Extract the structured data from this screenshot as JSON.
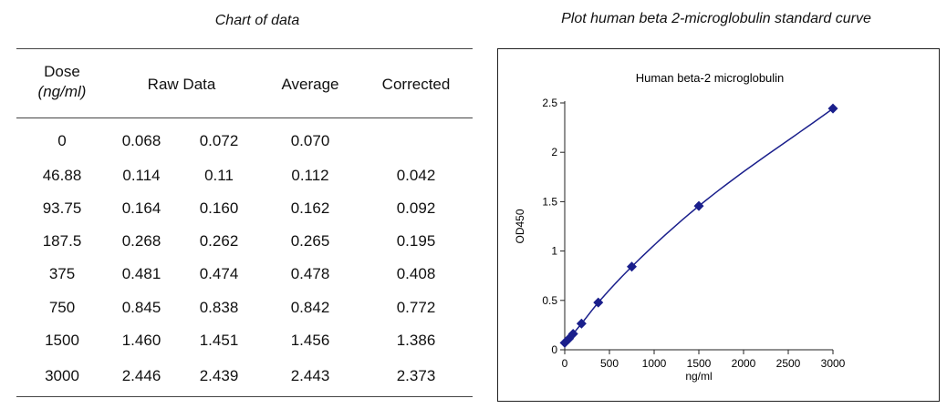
{
  "table_title": "Chart of data",
  "plot_caption": "Plot human beta 2-microglobulin standard curve",
  "table": {
    "headers": {
      "dose": "Dose",
      "dose_unit": "(ng/ml)",
      "raw": "Raw Data",
      "average": "Average",
      "corrected": "Corrected"
    },
    "rows": [
      {
        "dose": "0",
        "raw1": "0.068",
        "raw2": "0.072",
        "average": "0.070",
        "corrected": ""
      },
      {
        "dose": "46.88",
        "raw1": "0.114",
        "raw2": "0.11",
        "average": "0.112",
        "corrected": "0.042"
      },
      {
        "dose": "93.75",
        "raw1": "0.164",
        "raw2": "0.160",
        "average": "0.162",
        "corrected": "0.092"
      },
      {
        "dose": "187.5",
        "raw1": "0.268",
        "raw2": "0.262",
        "average": "0.265",
        "corrected": "0.195"
      },
      {
        "dose": "375",
        "raw1": "0.481",
        "raw2": "0.474",
        "average": "0.478",
        "corrected": "0.408"
      },
      {
        "dose": "750",
        "raw1": "0.845",
        "raw2": "0.838",
        "average": "0.842",
        "corrected": "0.772"
      },
      {
        "dose": "1500",
        "raw1": "1.460",
        "raw2": "1.451",
        "average": "1.456",
        "corrected": "1.386"
      },
      {
        "dose": "3000",
        "raw1": "2.446",
        "raw2": "2.439",
        "average": "2.443",
        "corrected": "2.373"
      }
    ]
  },
  "chart_data": {
    "type": "scatter",
    "title": "Human beta-2 microglobulin",
    "xlabel": "ng/ml",
    "ylabel": "OD450",
    "xlim": [
      0,
      3000
    ],
    "ylim": [
      0,
      2.5
    ],
    "xticks": [
      "0",
      "500",
      "1000",
      "1500",
      "2000",
      "2500",
      "3000"
    ],
    "xtick_values": [
      0,
      500,
      1000,
      1500,
      2000,
      2500,
      3000
    ],
    "yticks": [
      "0",
      "0.5",
      "1",
      "1.5",
      "2",
      "2.5"
    ],
    "ytick_values": [
      0,
      0.5,
      1,
      1.5,
      2,
      2.5
    ],
    "grid": false,
    "legend": "none",
    "fit_line": true,
    "color": "#1a1f8c",
    "x": [
      0,
      46.88,
      93.75,
      187.5,
      375,
      750,
      1500,
      3000
    ],
    "y": [
      0.07,
      0.112,
      0.162,
      0.265,
      0.478,
      0.842,
      1.456,
      2.443
    ]
  }
}
